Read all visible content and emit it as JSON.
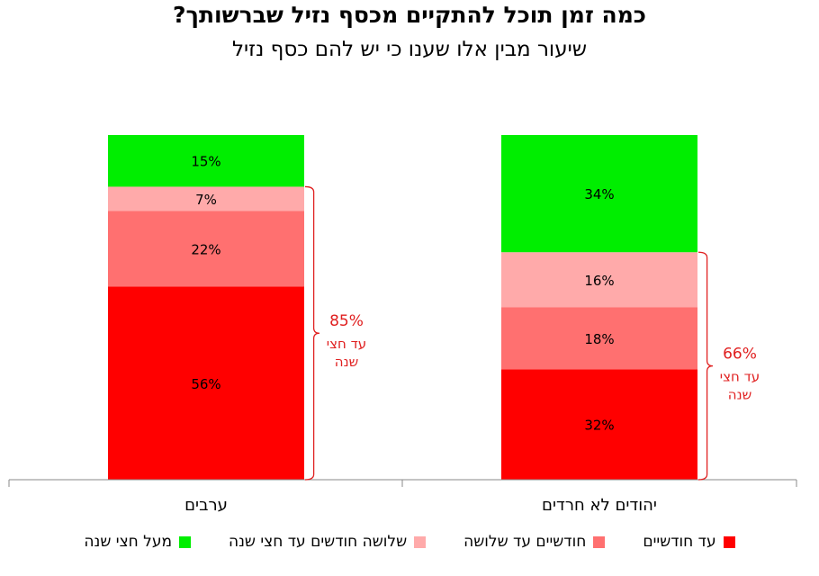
{
  "title": "כמה זמן תוכל להתקיים מכסף נזיל שברשותך?",
  "subtitle": "שיעור מבין אלו שענו כי יש להם כסף נזיל",
  "chart_data": {
    "type": "bar",
    "stacked": true,
    "categories": [
      "יהודים לא חרדים",
      "ערבים"
    ],
    "series": [
      {
        "name": "עד חודשיים",
        "color": "#ff0000",
        "values": [
          32,
          56
        ]
      },
      {
        "name": "חודשיים עד שלושה",
        "color": "#ff7070",
        "values": [
          18,
          22
        ]
      },
      {
        "name": "שלושה חודשים עד חצי שנה",
        "color": "#ffaaaa",
        "values": [
          16,
          7
        ]
      },
      {
        "name": "מעל חצי שנה",
        "color": "#00ee00",
        "values": [
          34,
          15
        ]
      }
    ],
    "data_labels": [
      [
        "32%",
        "18%",
        "16%",
        "34%"
      ],
      [
        "56%",
        "22%",
        "7%",
        "15%"
      ]
    ],
    "ylim": [
      0,
      100
    ],
    "grid": false,
    "legend_position": "bottom",
    "annotations": [
      {
        "category": "יהודים לא חרדים",
        "value": "66%",
        "text1": "עד חצי",
        "text2": "שנה",
        "color": "#e02020"
      },
      {
        "category": "ערבים",
        "value": "85%",
        "text1": "עד חצי",
        "text2": "שנה",
        "color": "#e02020"
      }
    ]
  }
}
